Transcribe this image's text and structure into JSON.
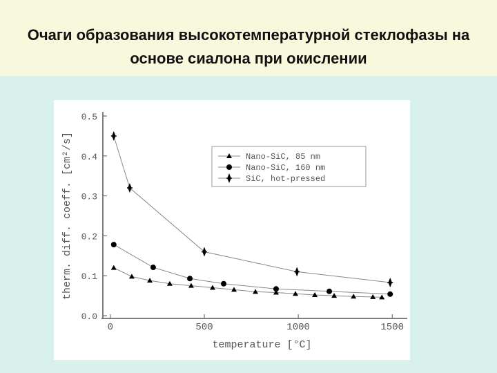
{
  "title": "Очаги образования высокотемпературной стеклофазы на основе сиалона при окислении",
  "chart_data": {
    "type": "line",
    "x_label": "temperature [°C]",
    "y_label": "therm. diff. coeff. [cm²/s]",
    "xlim": [
      -40,
      1580
    ],
    "xticks": [
      0,
      500,
      1000,
      1500
    ],
    "ylim": [
      0,
      0.5
    ],
    "yticks": [
      {
        "value": 0,
        "label": "0.0"
      },
      0.1,
      0.2,
      0.3,
      0.4,
      0.5
    ],
    "series": [
      {
        "name": "Nano-SiC, 85 nm",
        "color": "#000000",
        "marker": "triangle",
        "x": [
          18,
          114,
          210,
          316,
          430,
          544,
          658,
          772,
          882,
          985,
          1088,
          1191,
          1294,
          1397,
          1445
        ],
        "values": [
          0.12,
          0.098,
          0.088,
          0.08,
          0.075,
          0.07,
          0.065,
          0.06,
          0.058,
          0.055,
          0.052,
          0.05,
          0.048,
          0.047,
          0.046
        ]
      },
      {
        "name": "Nano-SiC, 160 nm",
        "color": "#000000",
        "marker": "circle",
        "x": [
          18,
          228,
          423,
          603,
          882,
          1165,
          1489
        ],
        "values": [
          0.178,
          0.121,
          0.093,
          0.08,
          0.067,
          0.061,
          0.054
        ]
      },
      {
        "name": "SiC, hot-pressed",
        "color": "#000000",
        "marker": "diamond",
        "x": [
          18,
          103,
          500,
          993,
          1489
        ],
        "values": [
          0.45,
          0.32,
          0.16,
          0.11,
          0.083
        ]
      }
    ]
  }
}
